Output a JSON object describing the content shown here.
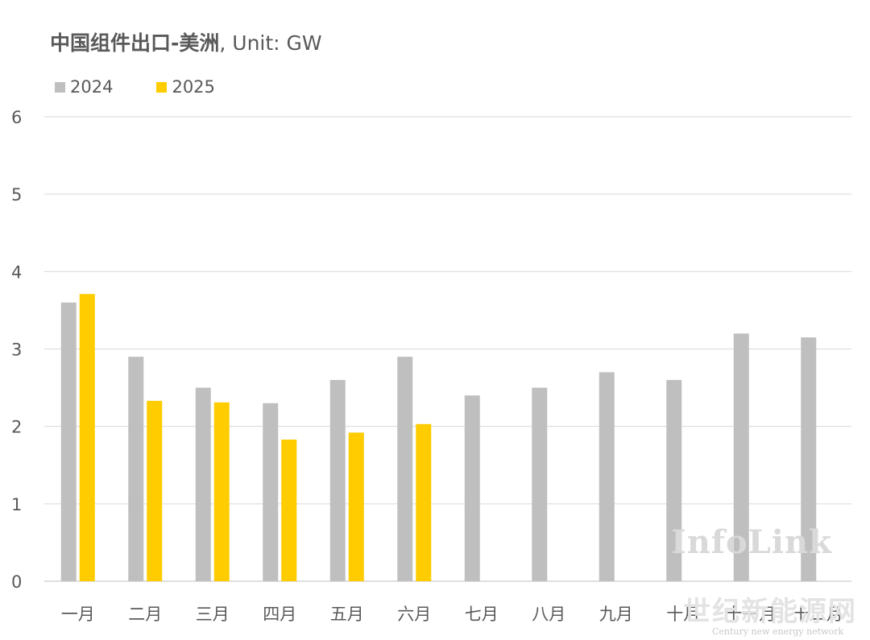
{
  "chart_data": {
    "type": "bar",
    "title": "中国组件出口-美洲",
    "title_unit": ", Unit: GW",
    "categories": [
      "一月",
      "二月",
      "三月",
      "四月",
      "五月",
      "六月",
      "七月",
      "八月",
      "九月",
      "十月",
      "十一月",
      "十二月"
    ],
    "series": [
      {
        "name": "2024",
        "color": "#bfbfbf",
        "values": [
          3.6,
          2.9,
          2.5,
          2.3,
          2.6,
          2.9,
          2.4,
          2.5,
          2.7,
          2.6,
          3.2,
          3.15
        ]
      },
      {
        "name": "2025",
        "color": "#ffcc00",
        "values": [
          3.71,
          2.33,
          2.31,
          1.83,
          1.92,
          2.03,
          null,
          null,
          null,
          null,
          null,
          null
        ]
      }
    ],
    "ylim": [
      0,
      6
    ],
    "yticks": [
      "0",
      "1",
      "2",
      "3",
      "4",
      "5",
      "6"
    ],
    "grid": true,
    "legend_position": "top-left"
  },
  "watermark": {
    "brand": "InfoLink",
    "site": "世纪新能源网",
    "site_en": "Century new energy network"
  }
}
